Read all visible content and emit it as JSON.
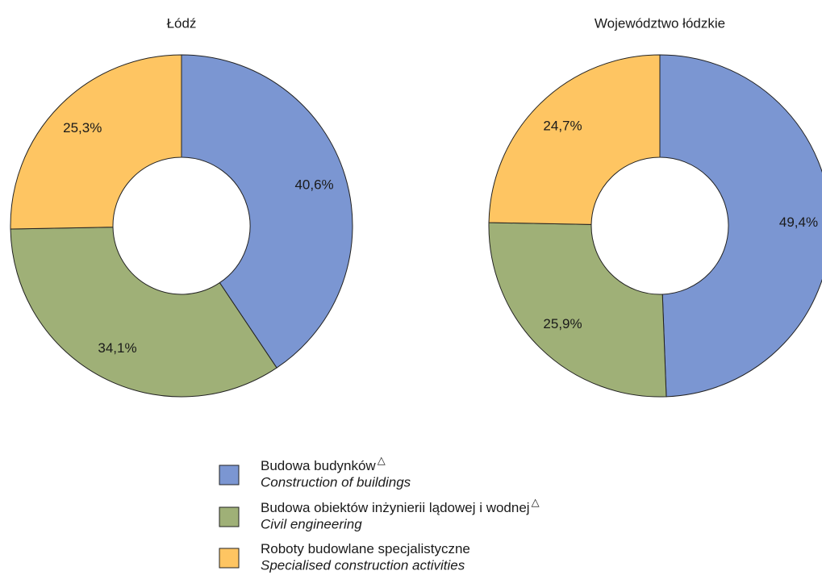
{
  "chart_data": [
    {
      "type": "donut",
      "title": "Łódź",
      "values": [
        40.6,
        34.1,
        25.3
      ],
      "value_labels": [
        "40,6%",
        "34,1%",
        "25,3%"
      ]
    },
    {
      "type": "donut",
      "title": "Województwo łódzkie",
      "values": [
        49.4,
        25.9,
        24.7
      ],
      "value_labels": [
        "49,4%",
        "25,9%",
        "24,7%"
      ]
    }
  ],
  "legend": {
    "items": [
      {
        "name": "Budowa budynków",
        "note_mark": "△",
        "name_en": "Construction of buildings",
        "color": "#7b96d2"
      },
      {
        "name": "Budowa obiektów inżynierii lądowej i wodnej",
        "note_mark": "△",
        "name_en": "Civil engineering",
        "color": "#9fb077"
      },
      {
        "name": "Roboty budowlane specjalistyczne",
        "name_en": "Specialised construction activities",
        "color": "#fec562"
      }
    ]
  }
}
